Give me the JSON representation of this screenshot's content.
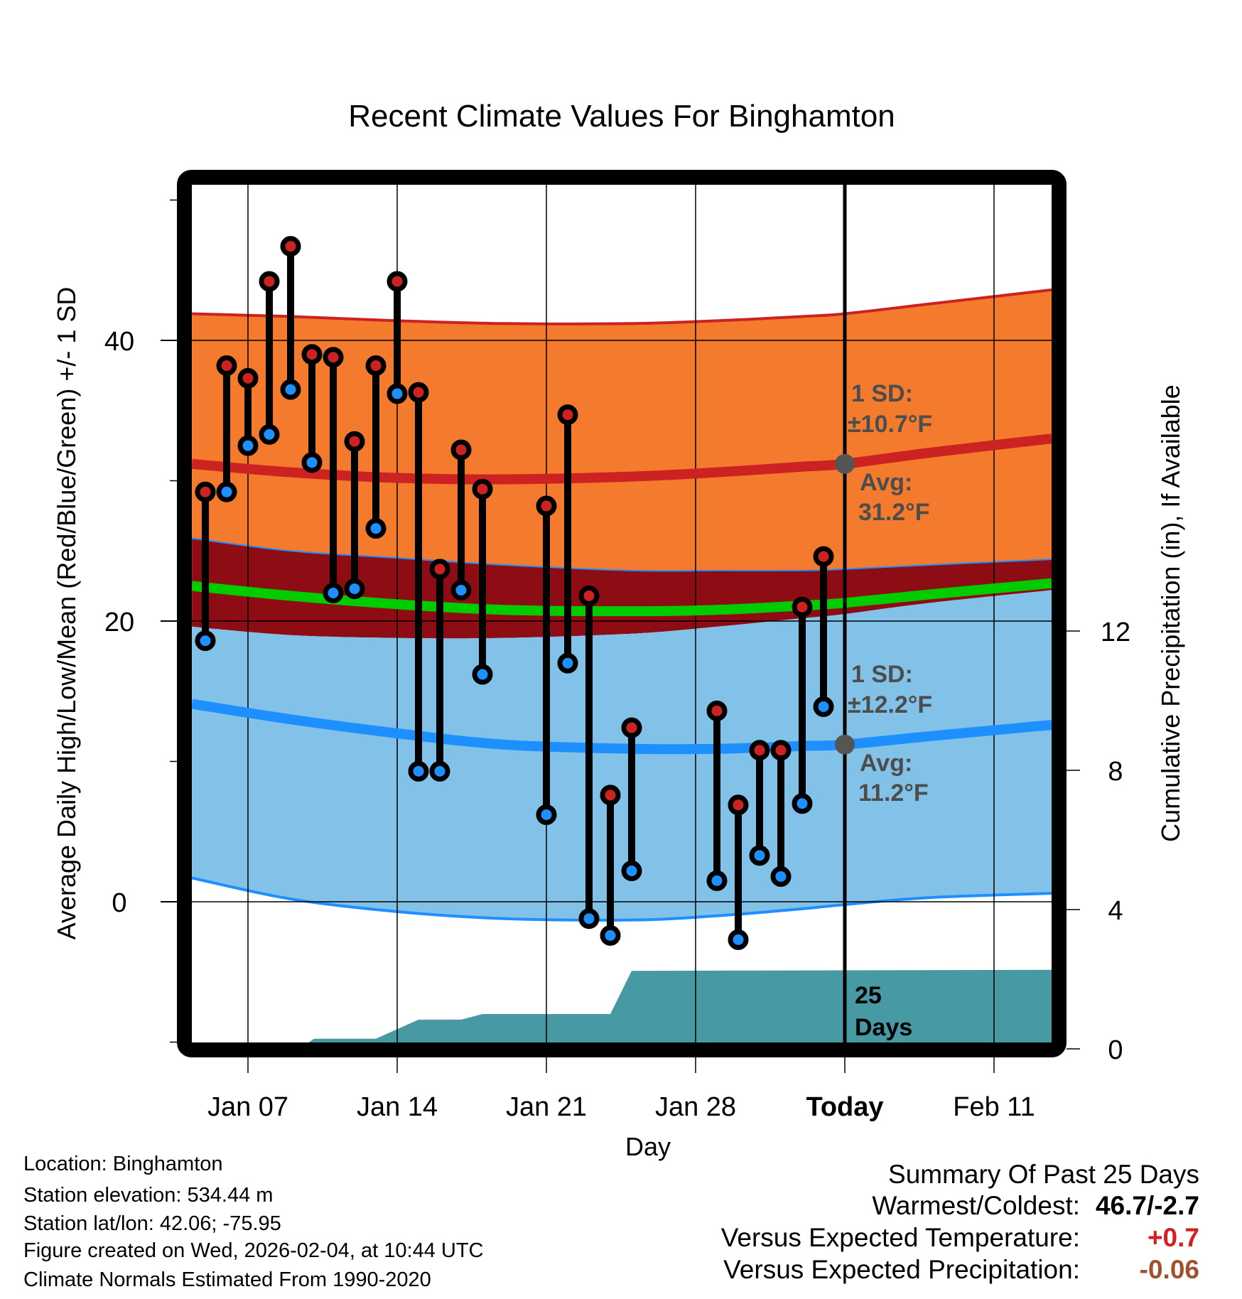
{
  "chart_data": {
    "type": "line",
    "title": "Recent Climate Values For Binghamton",
    "xlabel": "Day",
    "ylabel": "Average Daily High/Low/Mean (Red/Blue/Green) +/- 1 SD",
    "y2label": "Cumulative Precipitation (in), If Available",
    "ylim": [
      -10,
      51
    ],
    "y2lim": [
      0,
      15.3
    ],
    "x_range_days_from_jan05": [
      -0.63,
      39.7
    ],
    "grid": true,
    "x_ticks": [
      {
        "label": "Jan 07",
        "day": 2,
        "bold": false
      },
      {
        "label": "Jan 14",
        "day": 9,
        "bold": false
      },
      {
        "label": "Jan 21",
        "day": 16,
        "bold": false
      },
      {
        "label": "Jan 28",
        "day": 23,
        "bold": false
      },
      {
        "label": "Today",
        "day": 30,
        "bold": true
      },
      {
        "label": "Feb 11",
        "day": 37,
        "bold": false
      }
    ],
    "y_ticks": [
      0,
      20,
      40
    ],
    "y_minor_ticks": [
      -10,
      10,
      30,
      50
    ],
    "y2_ticks": [
      0,
      4,
      8,
      12
    ],
    "today_day": 30,
    "daily_observations": {
      "day_labels": [
        "Jan 05",
        "Jan 06",
        "Jan 07",
        "Jan 08",
        "Jan 09",
        "Jan 10",
        "Jan 11",
        "Jan 12",
        "Jan 13",
        "Jan 14",
        "Jan 15",
        "Jan 16",
        "Jan 17",
        "Jan 18",
        "Jan 21",
        "Jan 22",
        "Jan 23",
        "Jan 24",
        "Jan 25",
        "Jan 29",
        "Jan 30",
        "Jan 31",
        "Feb 01",
        "Feb 02",
        "Feb 03"
      ],
      "day_index": [
        0,
        1,
        2,
        3,
        4,
        5,
        6,
        7,
        8,
        9,
        10,
        11,
        12,
        13,
        16,
        17,
        18,
        19,
        20,
        24,
        25,
        26,
        27,
        28,
        29
      ],
      "high": [
        29.2,
        38.2,
        37.3,
        44.2,
        46.7,
        39.0,
        38.8,
        32.8,
        38.2,
        44.2,
        36.3,
        23.7,
        32.2,
        29.4,
        28.2,
        34.7,
        21.8,
        7.6,
        12.4,
        13.6,
        6.9,
        10.8,
        10.8,
        21.0,
        24.6
      ],
      "low": [
        18.6,
        29.2,
        32.5,
        33.3,
        36.5,
        31.3,
        22.0,
        22.3,
        26.6,
        36.2,
        9.3,
        9.3,
        22.2,
        16.2,
        6.2,
        17.0,
        -1.2,
        -2.4,
        2.2,
        1.5,
        -2.7,
        3.3,
        1.8,
        7.0,
        13.9
      ]
    },
    "climatology": {
      "x_days": [
        -0.63,
        4,
        9,
        14,
        20,
        24,
        28,
        30,
        34,
        39.7
      ],
      "high_mean": [
        31.2,
        30.6,
        30.2,
        30.1,
        30.3,
        30.6,
        31.0,
        31.2,
        32.0,
        33.0
      ],
      "high_plus_sd": [
        41.9,
        41.7,
        41.4,
        41.2,
        41.2,
        41.4,
        41.7,
        41.9,
        42.6,
        43.6
      ],
      "high_minus_sd": [
        19.6,
        19.0,
        18.8,
        18.8,
        19.1,
        19.6,
        20.2,
        20.5,
        21.3,
        22.2
      ],
      "low_mean": [
        14.1,
        13.0,
        12.0,
        11.2,
        10.9,
        10.9,
        11.1,
        11.2,
        11.8,
        12.6
      ],
      "low_plus_sd": [
        25.9,
        25.0,
        24.5,
        24.0,
        23.6,
        23.6,
        23.6,
        23.7,
        24.0,
        24.4
      ],
      "low_minus_sd": [
        1.7,
        0.2,
        -0.7,
        -1.2,
        -1.3,
        -1.0,
        -0.5,
        -0.2,
        0.3,
        0.6
      ],
      "daily_mean": [
        22.5,
        21.8,
        21.2,
        20.8,
        20.7,
        20.8,
        21.1,
        21.3,
        21.9,
        22.7
      ]
    },
    "precipitation_cumulative": {
      "x_days": [
        -0.63,
        4.4,
        5.1,
        8.0,
        10.0,
        12.0,
        13.0,
        19.0,
        20.0,
        39.7
      ],
      "values": [
        0.0,
        0.0,
        0.29,
        0.29,
        0.84,
        0.84,
        1.0,
        1.0,
        2.24,
        2.27
      ]
    },
    "annotations": {
      "high_sd": "1 SD:",
      "high_sd_value": "±10.7°F",
      "high_avg": "Avg:",
      "high_avg_value": "31.2°F",
      "low_sd": "1 SD:",
      "low_sd_value": "±12.2°F",
      "low_avg": "Avg:",
      "low_avg_value": "11.2°F",
      "today_high_avg": 31.2,
      "today_low_avg": 11.2,
      "days_count": "25",
      "days_word": "Days"
    },
    "colors": {
      "high_band": "#f47a2e",
      "high_line": "#cc2222",
      "overlap_band": "#8e0c14",
      "low_band": "#82c1e8",
      "low_line": "#1e8fff",
      "mean_line": "#00cc00",
      "precip": "#4799a3",
      "high_marker": "#cc2222",
      "low_marker": "#1e8fff",
      "today_dot": "#555555",
      "annotation_text": "#4d4d4d"
    }
  },
  "metadata": {
    "location": "Location: Binghamton",
    "elevation": "Station elevation: 534.44 m",
    "latlon": "Station lat/lon: 42.06; -75.95",
    "created": "Figure created on Wed, 2026-02-04, at 10:44 UTC",
    "normals": "Climate Normals Estimated From 1990-2020"
  },
  "summary": {
    "heading": "Summary Of Past 25 Days",
    "warmest_coldest_label": "Warmest/Coldest:",
    "warmest_coldest_value": "46.7/-2.7",
    "vs_temp_label": "Versus Expected Temperature:",
    "vs_temp_value": "+0.7",
    "vs_temp_color": "#d42020",
    "vs_precip_label": "Versus Expected Precipitation:",
    "vs_precip_value": "-0.06",
    "vs_precip_color": "#a0522d"
  }
}
